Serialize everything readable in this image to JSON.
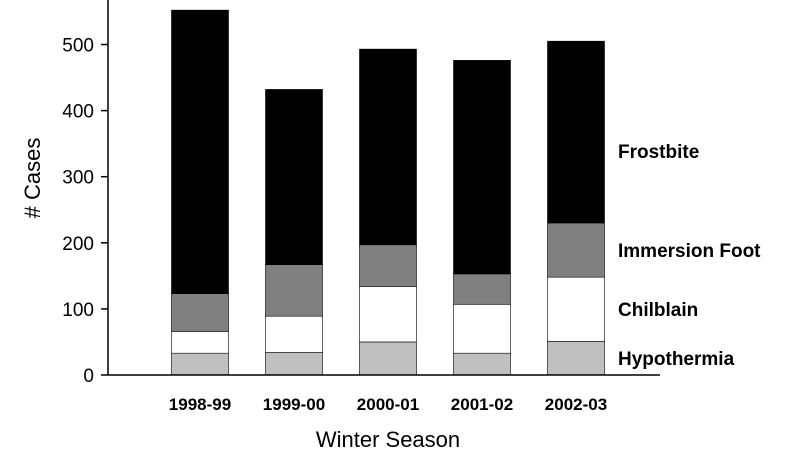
{
  "chart_data": {
    "type": "bar",
    "stacked": true,
    "title": "",
    "xlabel": "Winter Season",
    "ylabel": "# Cases",
    "ylim": [
      0,
      550
    ],
    "yticks": [
      0,
      100,
      200,
      300,
      400,
      500
    ],
    "grid": false,
    "legend": "series labels printed to the right of the last bar",
    "categories": [
      "1998-99",
      "1999-00",
      "2000-01",
      "2001-02",
      "2002-03"
    ],
    "series": [
      {
        "name": "Hypothermia",
        "color": "#c0c0c0",
        "values": [
          33,
          34,
          50,
          33,
          51
        ]
      },
      {
        "name": "Chilblain",
        "color": "#ffffff",
        "values": [
          33,
          55,
          84,
          74,
          97
        ]
      },
      {
        "name": "Immersion Foot",
        "color": "#808080",
        "values": [
          57,
          78,
          63,
          46,
          82
        ]
      },
      {
        "name": "Frostbite",
        "color": "#000000",
        "values": [
          429,
          265,
          296,
          323,
          275
        ]
      }
    ]
  }
}
